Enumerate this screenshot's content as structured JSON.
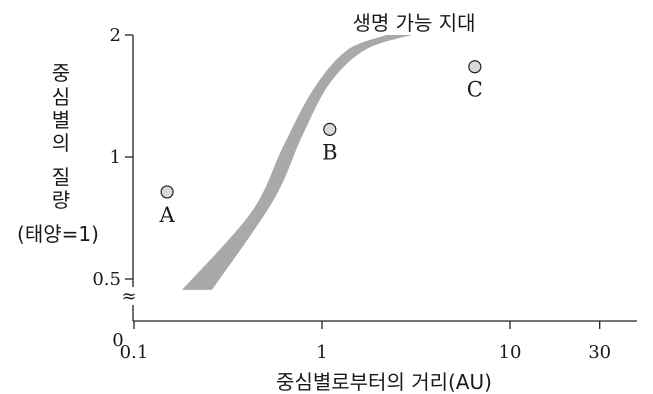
{
  "chart_data": {
    "type": "scatter",
    "title": "",
    "xlabel": "중심별로부터의 거리(AU)",
    "ylabel_chars": [
      "중",
      "심",
      "별",
      "의",
      "질",
      "량"
    ],
    "ylabel_unit": "(태양=1)",
    "x_scale": "log",
    "y_scale": "log",
    "x_ticks": [
      {
        "value": 0.1,
        "label": "0.1"
      },
      {
        "value": 1,
        "label": "1"
      },
      {
        "value": 10,
        "label": "10"
      },
      {
        "value": 30,
        "label": "30"
      }
    ],
    "x_origin_label": "0",
    "y_ticks": [
      {
        "value": 0.5,
        "label": "0.5"
      },
      {
        "value": 1,
        "label": "1"
      },
      {
        "value": 2,
        "label": "2"
      }
    ],
    "axis_break_symbol": "≈",
    "xlim": [
      0.05,
      30
    ],
    "ylim": [
      0.5,
      2
    ],
    "grid": false,
    "region": {
      "name": "생명 가능 지대",
      "color": "#a9a9a9",
      "upper_edge": [
        {
          "x": 0.26,
          "y": 0.47
        },
        {
          "x": 0.55,
          "y": 0.78
        },
        {
          "x": 0.78,
          "y": 1.12
        },
        {
          "x": 1.1,
          "y": 1.52
        },
        {
          "x": 1.7,
          "y": 1.84
        },
        {
          "x": 3.0,
          "y": 2.0
        }
      ],
      "lower_edge": [
        {
          "x": 0.18,
          "y": 0.47
        },
        {
          "x": 0.42,
          "y": 0.73
        },
        {
          "x": 0.62,
          "y": 1.06
        },
        {
          "x": 0.9,
          "y": 1.47
        },
        {
          "x": 1.35,
          "y": 1.83
        },
        {
          "x": 2.2,
          "y": 2.0
        }
      ]
    },
    "points": [
      {
        "label": "A",
        "x": 0.15,
        "y": 0.82
      },
      {
        "label": "B",
        "x": 1.1,
        "y": 1.17
      },
      {
        "label": "C",
        "x": 6.5,
        "y": 1.67
      }
    ],
    "point_fill": "#d9d9d9"
  }
}
